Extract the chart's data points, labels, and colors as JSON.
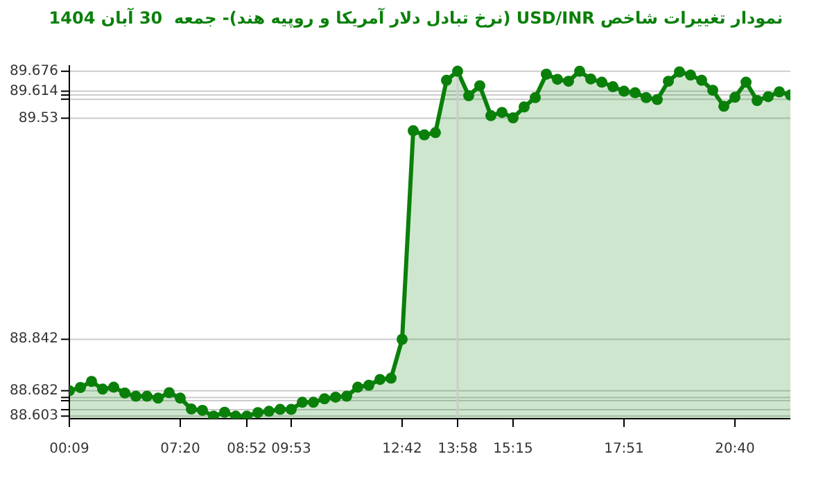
{
  "chart_data": {
    "type": "area",
    "title": "نمودار تغییرات شاخص USD/INR (نرخ تبادل دلار آمریکا و روپیه هند)- جمعه  30 آبان 1404",
    "categories": [
      "00:09",
      null,
      null,
      null,
      null,
      null,
      null,
      null,
      null,
      null,
      "07:20",
      null,
      null,
      null,
      null,
      null,
      "08:52",
      null,
      null,
      null,
      "09:53",
      null,
      null,
      null,
      null,
      null,
      null,
      null,
      null,
      null,
      "12:42",
      null,
      null,
      null,
      null,
      "13:58",
      null,
      null,
      null,
      null,
      "15:15",
      null,
      null,
      null,
      null,
      null,
      null,
      null,
      null,
      null,
      "17:51",
      null,
      null,
      null,
      null,
      null,
      null,
      null,
      null,
      null,
      "20:40",
      null,
      null,
      null,
      null,
      null
    ],
    "series": [
      {
        "color": "#0a800a",
        "values": [
          88.682,
          88.692,
          88.711,
          88.687,
          88.693,
          88.675,
          88.665,
          88.665,
          88.659,
          88.676,
          88.659,
          88.625,
          88.621,
          88.603,
          88.615,
          88.603,
          88.603,
          88.614,
          88.618,
          88.624,
          88.624,
          88.646,
          88.646,
          88.657,
          88.662,
          88.665,
          88.693,
          88.699,
          88.717,
          88.721,
          88.842,
          89.491,
          89.478,
          89.485,
          89.648,
          89.676,
          89.6,
          89.631,
          89.538,
          89.548,
          89.531,
          89.565,
          89.594,
          89.667,
          89.651,
          89.645,
          89.676,
          89.652,
          89.642,
          89.628,
          89.614,
          89.609,
          89.594,
          89.588,
          89.645,
          89.674,
          89.664,
          89.648,
          89.617,
          89.567,
          89.595,
          89.642,
          89.585,
          89.597,
          89.612,
          89.602
        ]
      }
    ],
    "ylim": [
      88.595,
      89.695
    ],
    "yticks": [
      89.676,
      89.614,
      {
        "value": 89.602,
        "label": null
      },
      {
        "value": 89.589,
        "label": null
      },
      89.53,
      88.842,
      88.682,
      {
        "value": 88.661,
        "label": null
      },
      {
        "value": 88.651,
        "label": null
      },
      {
        "value": 88.623,
        "label": null
      },
      88.603
    ],
    "ref_lines": [
      {
        "axis": "x",
        "value": "13:58",
        "color": "#cccccc"
      }
    ],
    "grid": "y",
    "marker": "circle",
    "line_style": "solid"
  }
}
